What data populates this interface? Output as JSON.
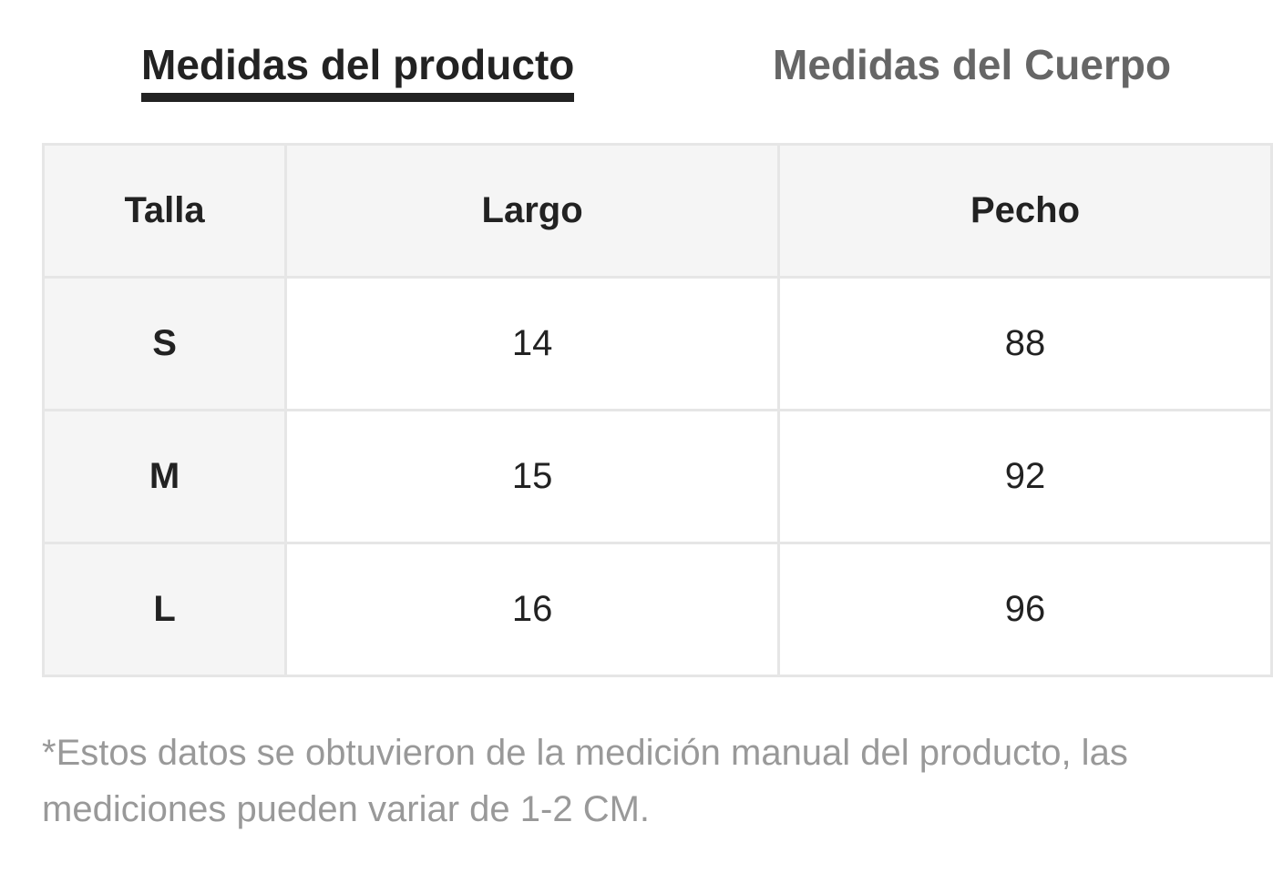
{
  "tabs": [
    "Medidas del producto",
    "Medidas del Cuerpo"
  ],
  "table": {
    "header": [
      "Talla",
      "Largo",
      "Pecho"
    ],
    "rows": [
      [
        "S",
        14,
        88
      ],
      [
        "M",
        15,
        92
      ],
      [
        "L",
        16,
        96
      ]
    ]
  },
  "note": "*Estos datos se obtuvieron de la medición manual del producto, las mediciones pueden variar de 1-2 CM."
}
